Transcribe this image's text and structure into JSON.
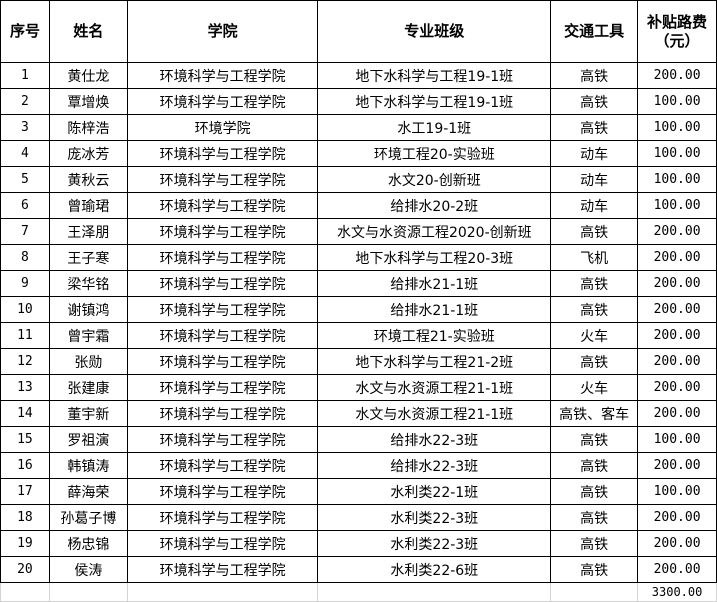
{
  "headers": [
    "序号",
    "姓名",
    "学院",
    "专业班级",
    "交通工具",
    "补贴路费\n（元）"
  ],
  "rows": [
    [
      "1",
      "黄仕龙",
      "环境科学与工程学院",
      "地下水科学与工程19-1班",
      "高铁",
      "200.00"
    ],
    [
      "2",
      "覃增焕",
      "环境科学与工程学院",
      "地下水科学与工程19-1班",
      "高铁",
      "100.00"
    ],
    [
      "3",
      "陈梓浩",
      "环境学院",
      "水工19-1班",
      "高铁",
      "100.00"
    ],
    [
      "4",
      "庞冰芳",
      "环境科学与工程学院",
      "环境工程20-实验班",
      "动车",
      "100.00"
    ],
    [
      "5",
      "黄秋云",
      "环境科学与工程学院",
      "水文20-创新班",
      "动车",
      "100.00"
    ],
    [
      "6",
      "曾瑜珺",
      "环境科学与工程学院",
      "给排水20-2班",
      "动车",
      "100.00"
    ],
    [
      "7",
      "王泽朋",
      "环境科学与工程学院",
      "水文与水资源工程2020-创新班",
      "高铁",
      "200.00"
    ],
    [
      "8",
      "王子寒",
      "环境科学与工程学院",
      "地下水科学与工程20-3班",
      "飞机",
      "200.00"
    ],
    [
      "9",
      "梁华铭",
      "环境科学与工程学院",
      "给排水21-1班",
      "高铁",
      "200.00"
    ],
    [
      "10",
      "谢镇鸿",
      "环境科学与工程学院",
      "给排水21-1班",
      "高铁",
      "200.00"
    ],
    [
      "11",
      "曾宇霜",
      "环境科学与工程学院",
      "环境工程21-实验班",
      "火车",
      "200.00"
    ],
    [
      "12",
      "张勋",
      "环境科学与工程学院",
      "地下水科学与工程21-2班",
      "高铁",
      "200.00"
    ],
    [
      "13",
      "张建康",
      "环境科学与工程学院",
      "水文与水资源工程21-1班",
      "火车",
      "200.00"
    ],
    [
      "14",
      "董宇新",
      "环境科学与工程学院",
      "水文与水资源工程21-1班",
      "高铁、客车",
      "200.00"
    ],
    [
      "15",
      "罗祖演",
      "环境科学与工程学院",
      "给排水22-3班",
      "高铁",
      "100.00"
    ],
    [
      "16",
      "韩镇涛",
      "环境科学与工程学院",
      "给排水22-3班",
      "高铁",
      "200.00"
    ],
    [
      "17",
      "薛海荣",
      "环境科学与工程学院",
      "水利类22-1班",
      "高铁",
      "100.00"
    ],
    [
      "18",
      "孙葛子博",
      "环境科学与工程学院",
      "水利类22-3班",
      "高铁",
      "200.00"
    ],
    [
      "19",
      "杨忠锦",
      "环境科学与工程学院",
      "水利类22-3班",
      "高铁",
      "200.00"
    ],
    [
      "20",
      "侯涛",
      "环境科学与工程学院",
      "水利类22-6班",
      "高铁",
      "200.00"
    ]
  ],
  "total": "3300.00"
}
